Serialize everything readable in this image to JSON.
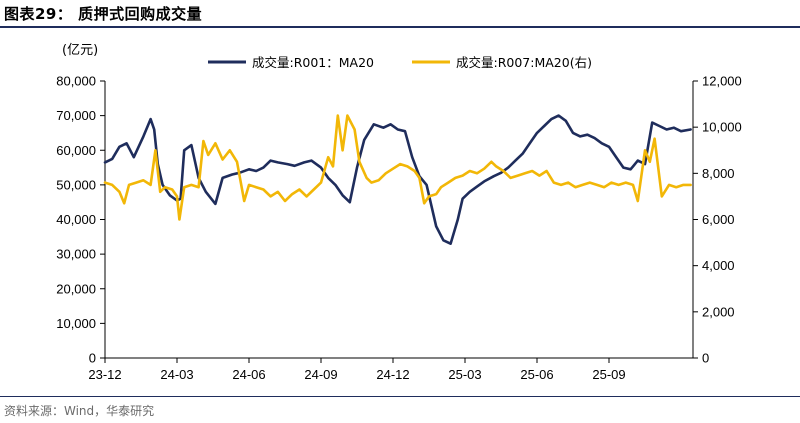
{
  "figure": {
    "title": "图表29：  质押式回购成交量",
    "source": "资料来源：Wind，华泰研究"
  },
  "chart_data": {
    "type": "line",
    "unit_left": "(亿元)",
    "x_ticks": [
      "23-12",
      "24-03",
      "24-06",
      "24-09",
      "24-12",
      "25-03",
      "25-06",
      "25-09"
    ],
    "x_range_months": [
      0,
      24.5
    ],
    "y_left": {
      "range": [
        0,
        80000
      ],
      "ticks": [
        "0",
        "10,000",
        "20,000",
        "30,000",
        "40,000",
        "50,000",
        "60,000",
        "70,000",
        "80,000"
      ]
    },
    "y_right": {
      "range": [
        0,
        12000
      ],
      "ticks": [
        "0",
        "2,000",
        "4,000",
        "6,000",
        "8,000",
        "10,000",
        "12,000"
      ]
    },
    "colors": {
      "r001": "#1f2d5c",
      "r007": "#f2b707"
    },
    "series": [
      {
        "name": "成交量:R001：MA20",
        "axis": "left",
        "x_months": [
          0,
          0.3,
          0.6,
          0.9,
          1.2,
          1.6,
          1.9,
          2.05,
          2.2,
          2.4,
          2.7,
          3.0,
          3.15,
          3.3,
          3.6,
          3.9,
          4.2,
          4.6,
          4.9,
          5.3,
          5.6,
          6.0,
          6.3,
          6.6,
          6.9,
          7.2,
          7.6,
          7.9,
          8.3,
          8.6,
          9.0,
          9.3,
          9.6,
          9.9,
          10.2,
          10.5,
          10.8,
          11.2,
          11.6,
          11.9,
          12.2,
          12.5,
          12.8,
          13.1,
          13.4,
          13.8,
          14.1,
          14.4,
          14.7,
          14.9,
          15.2,
          15.5,
          15.8,
          16.2,
          16.5,
          16.8,
          17.1,
          17.4,
          17.7,
          18.0,
          18.3,
          18.6,
          18.9,
          19.2,
          19.5,
          19.8,
          20.1,
          20.4,
          20.7,
          21.0,
          21.3,
          21.6,
          21.9,
          22.2,
          22.5,
          22.8,
          23.1,
          23.4,
          23.7,
          24.0,
          24.4
        ],
        "values": [
          56500,
          57500,
          61000,
          62000,
          58000,
          64000,
          69000,
          66000,
          56000,
          50000,
          47000,
          45500,
          46000,
          60000,
          61500,
          52000,
          48000,
          44500,
          52000,
          53000,
          53500,
          54500,
          54000,
          55000,
          57000,
          56500,
          56000,
          55500,
          56500,
          57000,
          55000,
          52000,
          50000,
          47000,
          45000,
          55000,
          63000,
          67500,
          66500,
          67500,
          66000,
          65500,
          58000,
          52500,
          50000,
          38000,
          34000,
          33000,
          40000,
          46000,
          48000,
          49500,
          51000,
          52500,
          53500,
          55000,
          57000,
          59000,
          62000,
          65000,
          67000,
          69000,
          70000,
          68500,
          65000,
          64000,
          64500,
          63500,
          62000,
          61000,
          58000,
          55000,
          54500,
          57000,
          56000,
          68000,
          67000,
          66000,
          66500,
          65500,
          66000
        ]
      },
      {
        "name": "成交量:R007:MA20(右)",
        "axis": "right",
        "x_months": [
          0,
          0.3,
          0.6,
          0.8,
          1.0,
          1.3,
          1.6,
          1.9,
          2.1,
          2.3,
          2.5,
          2.8,
          3.0,
          3.1,
          3.3,
          3.6,
          3.9,
          4.1,
          4.3,
          4.6,
          4.9,
          5.2,
          5.5,
          5.8,
          6.0,
          6.3,
          6.6,
          6.9,
          7.2,
          7.5,
          7.8,
          8.1,
          8.4,
          8.7,
          9.0,
          9.3,
          9.5,
          9.7,
          9.9,
          10.1,
          10.4,
          10.6,
          10.9,
          11.1,
          11.4,
          11.7,
          12.0,
          12.3,
          12.6,
          12.9,
          13.1,
          13.3,
          13.5,
          13.8,
          14.0,
          14.3,
          14.6,
          14.9,
          15.2,
          15.5,
          15.8,
          16.1,
          16.3,
          16.6,
          16.9,
          17.2,
          17.5,
          17.8,
          18.1,
          18.4,
          18.7,
          19.0,
          19.3,
          19.6,
          19.9,
          20.2,
          20.5,
          20.8,
          21.1,
          21.4,
          21.7,
          22.0,
          22.2,
          22.5,
          22.7,
          22.9,
          23.2,
          23.5,
          23.8,
          24.1,
          24.4
        ],
        "values": [
          7600,
          7500,
          7200,
          6700,
          7500,
          7600,
          7700,
          7500,
          9000,
          7200,
          7400,
          7300,
          7000,
          6000,
          7400,
          7500,
          7400,
          9400,
          8800,
          9300,
          8600,
          9000,
          8500,
          6800,
          7500,
          7400,
          7300,
          7000,
          7200,
          6800,
          7100,
          7300,
          7000,
          7300,
          7600,
          8700,
          8300,
          10500,
          9000,
          10500,
          9900,
          8500,
          7800,
          7600,
          7700,
          8000,
          8200,
          8400,
          8300,
          8100,
          7800,
          6700,
          7000,
          7100,
          7400,
          7600,
          7800,
          7900,
          8100,
          8000,
          8200,
          8500,
          8300,
          8100,
          7800,
          7900,
          8000,
          8100,
          7900,
          8100,
          7600,
          7500,
          7600,
          7400,
          7500,
          7600,
          7500,
          7400,
          7600,
          7500,
          7600,
          7500,
          6800,
          9000,
          8500,
          9500,
          7000,
          7500,
          7400,
          7500,
          7500
        ]
      }
    ]
  }
}
